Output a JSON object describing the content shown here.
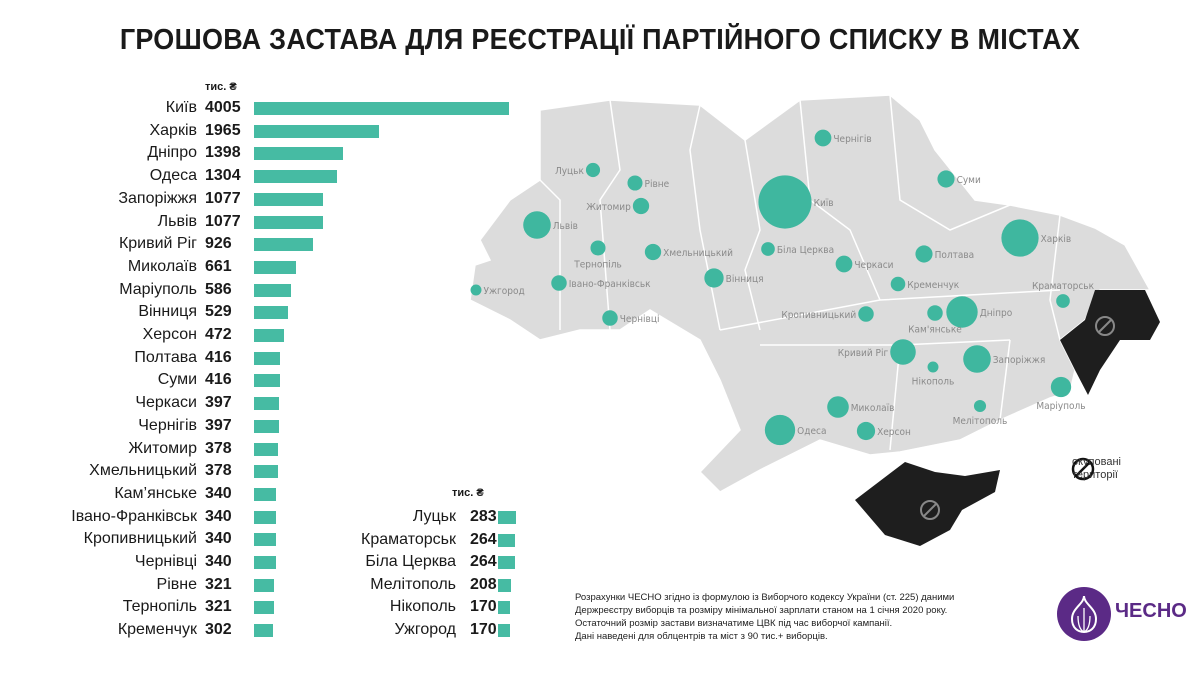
{
  "title": "ГРОШОВА ЗАСТАВА ДЛЯ РЕЄСТРАЦІЇ ПАРТІЙНОГО СПИСКУ В МІСТАХ",
  "chart_data": {
    "type": "bar",
    "orientation": "horizontal",
    "unit": "тис. ₴",
    "categories": [
      "Київ",
      "Харків",
      "Дніпро",
      "Одеса",
      "Запоріжжя",
      "Львів",
      "Кривий Ріг",
      "Миколаїв",
      "Маріуполь",
      "Вінниця",
      "Херсон",
      "Полтава",
      "Суми",
      "Черкаси",
      "Чернігів",
      "Житомир",
      "Хмельницький",
      "Кам’янське",
      "Івано-Франківськ",
      "Кропивницький",
      "Чернівці",
      "Рівне",
      "Тернопіль",
      "Кременчук",
      "Луцьк",
      "Краматорськ",
      "Біла Церква",
      "Мелітополь",
      "Нікополь",
      "Ужгород"
    ],
    "values": [
      4005,
      1965,
      1398,
      1304,
      1077,
      1077,
      926,
      661,
      586,
      529,
      472,
      416,
      416,
      397,
      397,
      378,
      378,
      340,
      340,
      340,
      340,
      321,
      321,
      302,
      283,
      264,
      264,
      208,
      170,
      170
    ],
    "bar_color": "#46bba3",
    "grid": false
  },
  "map": {
    "labels": {
      "Кам’янське": "Кам'янське"
    },
    "region_color": "#dcdcdc",
    "occupied_color": "#1e1e1e",
    "legend": [
      "окуповані",
      "території"
    ]
  },
  "note": [
    "Розрахунки ЧЕСНО згідно із формулою із Виборчого кодексу України (ст. 225) даними",
    "Держреєстру виборців та розміру мінімальної зарплати станом на 1 січня 2020 року.",
    "Остаточний розмір застави визначатиме ЦВК під час виборчої кампанії.",
    "Дані наведені для облцентрів та міст з 90 тис.+ виборців."
  ],
  "logo": {
    "text": "ЧЕСНО",
    "color": "#5b2a86"
  }
}
